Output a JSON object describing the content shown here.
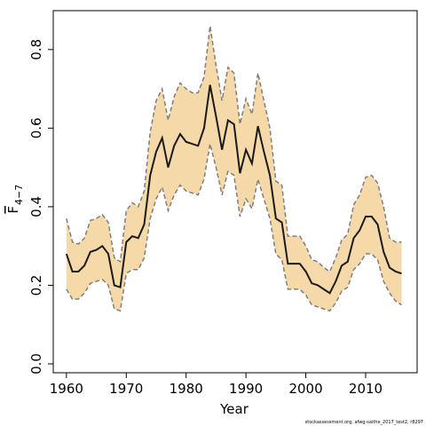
{
  "chart_data": {
    "type": "line",
    "xlabel": "Year",
    "ylabel": "F",
    "ylabel_subscript": "4−7",
    "footnote": "stockassessment.org, afwg-saithe_2017_test2, r8297",
    "x": [
      1960,
      1961,
      1962,
      1963,
      1964,
      1965,
      1966,
      1967,
      1968,
      1969,
      1970,
      1971,
      1972,
      1973,
      1974,
      1975,
      1976,
      1977,
      1978,
      1979,
      1980,
      1981,
      1982,
      1983,
      1984,
      1985,
      1986,
      1987,
      1988,
      1989,
      1990,
      1991,
      1992,
      1993,
      1994,
      1995,
      1996,
      1997,
      1998,
      1999,
      2000,
      2001,
      2002,
      2003,
      2004,
      2005,
      2006,
      2007,
      2008,
      2009,
      2010,
      2011,
      2012,
      2013,
      2014,
      2015,
      2016
    ],
    "values": [
      0.28,
      0.235,
      0.235,
      0.25,
      0.285,
      0.29,
      0.3,
      0.28,
      0.2,
      0.195,
      0.31,
      0.325,
      0.32,
      0.355,
      0.48,
      0.54,
      0.575,
      0.5,
      0.555,
      0.585,
      0.565,
      0.56,
      0.555,
      0.6,
      0.71,
      0.63,
      0.545,
      0.62,
      0.61,
      0.485,
      0.545,
      0.51,
      0.605,
      0.54,
      0.48,
      0.37,
      0.36,
      0.255,
      0.255,
      0.255,
      0.235,
      0.205,
      0.2,
      0.19,
      0.18,
      0.21,
      0.25,
      0.26,
      0.32,
      0.34,
      0.375,
      0.375,
      0.355,
      0.285,
      0.245,
      0.235,
      0.23
    ],
    "upper": [
      0.37,
      0.31,
      0.305,
      0.32,
      0.365,
      0.37,
      0.38,
      0.36,
      0.27,
      0.26,
      0.39,
      0.41,
      0.4,
      0.44,
      0.59,
      0.67,
      0.7,
      0.62,
      0.68,
      0.715,
      0.7,
      0.69,
      0.69,
      0.73,
      0.86,
      0.76,
      0.67,
      0.755,
      0.74,
      0.61,
      0.675,
      0.635,
      0.74,
      0.67,
      0.6,
      0.465,
      0.455,
      0.325,
      0.325,
      0.325,
      0.3,
      0.265,
      0.26,
      0.245,
      0.235,
      0.27,
      0.315,
      0.33,
      0.405,
      0.43,
      0.475,
      0.48,
      0.46,
      0.4,
      0.32,
      0.31,
      0.31
    ],
    "lower": [
      0.19,
      0.165,
      0.165,
      0.18,
      0.205,
      0.21,
      0.215,
      0.2,
      0.14,
      0.135,
      0.23,
      0.24,
      0.24,
      0.27,
      0.37,
      0.42,
      0.45,
      0.39,
      0.43,
      0.455,
      0.44,
      0.435,
      0.43,
      0.47,
      0.56,
      0.5,
      0.43,
      0.49,
      0.48,
      0.375,
      0.42,
      0.395,
      0.47,
      0.42,
      0.37,
      0.28,
      0.265,
      0.19,
      0.19,
      0.19,
      0.175,
      0.15,
      0.145,
      0.14,
      0.135,
      0.155,
      0.185,
      0.195,
      0.24,
      0.255,
      0.28,
      0.28,
      0.265,
      0.21,
      0.18,
      0.16,
      0.15
    ],
    "color": "#1a1a1a",
    "band_color": "#f5d9a8",
    "band_edge_color": "#7f7f7f",
    "xlim": [
      1957.8,
      2018.6
    ],
    "xticks": [
      1960,
      1970,
      1980,
      1990,
      2000,
      2010
    ],
    "ylim": [
      -0.0226,
      0.899
    ],
    "yticks": [
      {
        "value": 0,
        "label": "0.0"
      },
      {
        "value": 0.2,
        "label": "0.2"
      },
      {
        "value": 0.4,
        "label": "0.4"
      },
      {
        "value": 0.6,
        "label": "0.6"
      },
      {
        "value": 0.8,
        "label": "0.8"
      }
    ]
  }
}
